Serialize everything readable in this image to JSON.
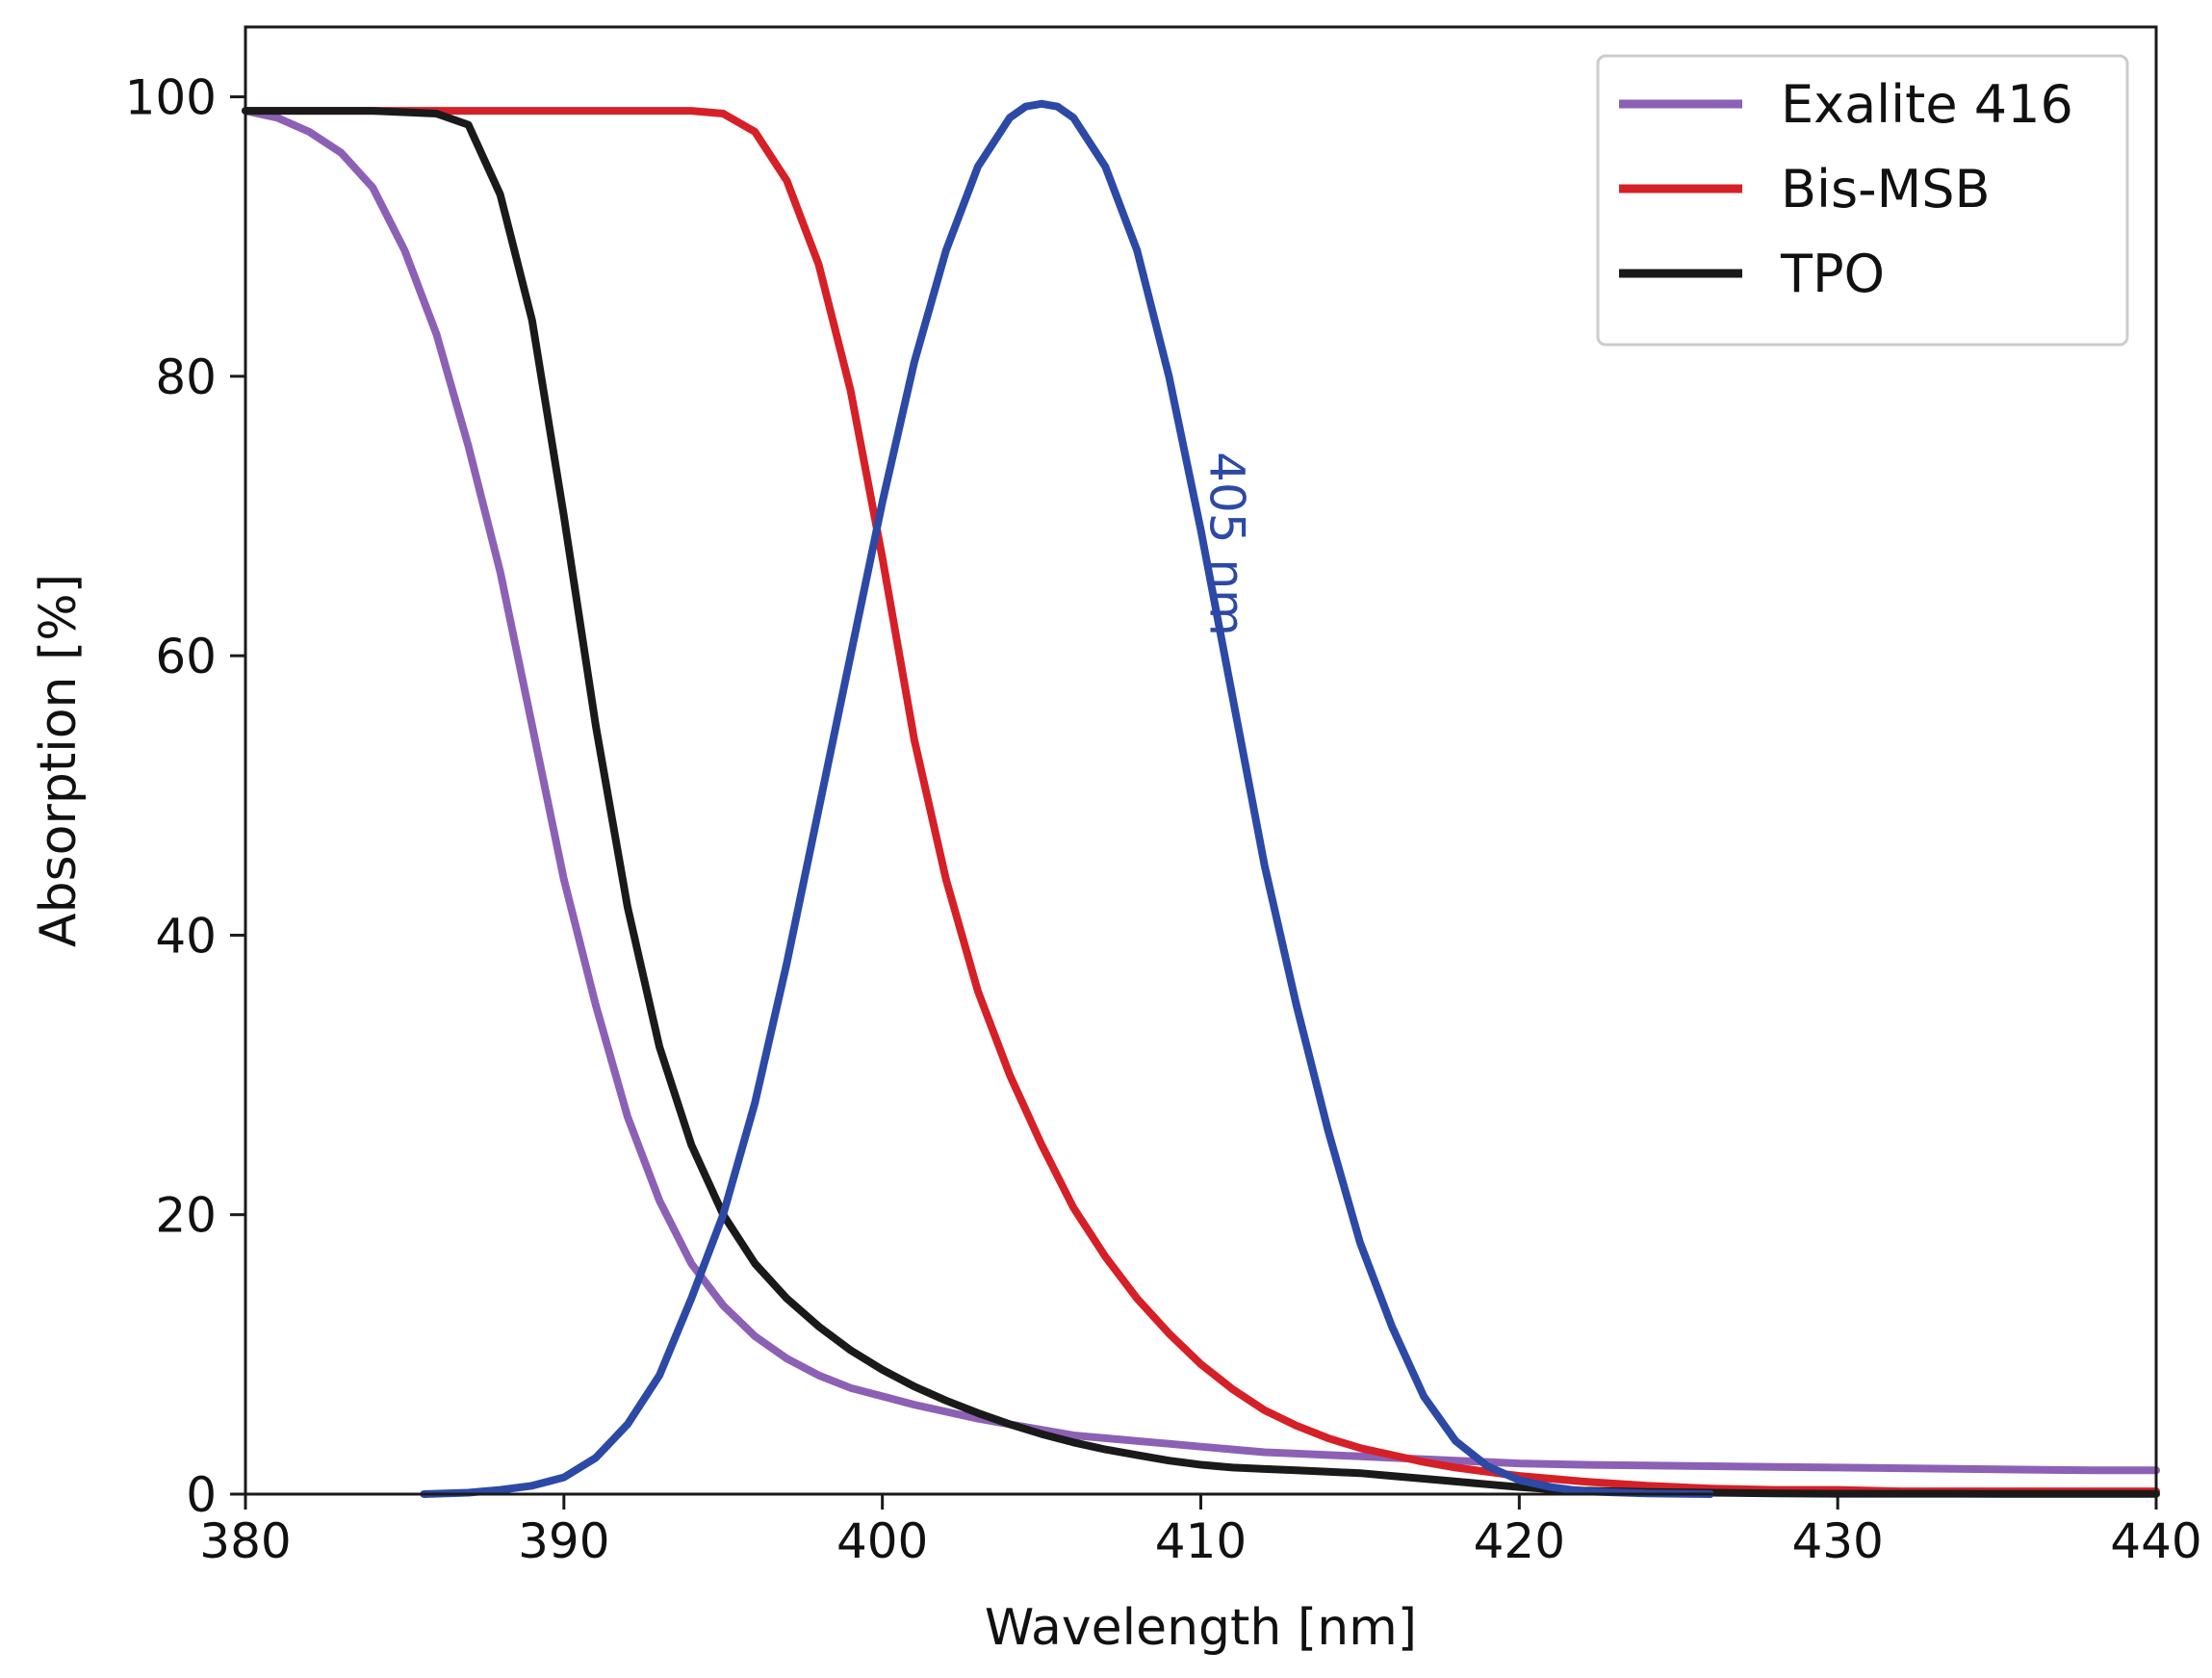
{
  "chart_data": {
    "type": "line",
    "title": "",
    "xlabel": "Wavelength [nm]",
    "ylabel": "Absorption [%]",
    "xlim": [
      380,
      440
    ],
    "ylim": [
      0,
      105
    ],
    "xticks": [
      380,
      390,
      400,
      410,
      420,
      430,
      440
    ],
    "yticks": [
      0,
      20,
      40,
      60,
      80,
      100
    ],
    "grid": false,
    "legend_position": "top-right",
    "series": [
      {
        "name": "Exalite 416",
        "color": "#8c61b5",
        "x": [
          380,
          381,
          382,
          383,
          384,
          385,
          386,
          387,
          388,
          389,
          390,
          391,
          392,
          393,
          394,
          395,
          396,
          397,
          398,
          399,
          400,
          401,
          402,
          403,
          404,
          405,
          406,
          407,
          408,
          409,
          410,
          411,
          412,
          413,
          414,
          415,
          416,
          417,
          418,
          419,
          420,
          422,
          424,
          426,
          428,
          430,
          432,
          434,
          436,
          438,
          440
        ],
        "y": [
          99,
          98.5,
          97.5,
          96,
          93.5,
          89,
          83,
          75,
          66,
          55,
          44,
          35,
          27,
          21,
          16.5,
          13.5,
          11.3,
          9.7,
          8.5,
          7.6,
          7,
          6.4,
          5.9,
          5.4,
          5,
          4.6,
          4.2,
          4,
          3.8,
          3.6,
          3.4,
          3.2,
          3,
          2.9,
          2.8,
          2.7,
          2.6,
          2.5,
          2.4,
          2.3,
          2.2,
          2.1,
          2.05,
          2,
          1.95,
          1.9,
          1.85,
          1.8,
          1.75,
          1.7,
          1.7
        ]
      },
      {
        "name": "Bis-MSB",
        "color": "#d62027",
        "x": [
          380,
          385,
          390,
          394,
          395,
          396,
          397,
          398,
          399,
          400,
          401,
          402,
          403,
          404,
          405,
          406,
          407,
          408,
          409,
          410,
          411,
          412,
          413,
          414,
          415,
          416,
          417,
          418,
          419,
          420,
          422,
          424,
          426,
          428,
          430,
          432,
          434,
          436,
          438,
          440
        ],
        "y": [
          99,
          99,
          99,
          99,
          98.8,
          97.5,
          94,
          88,
          79,
          67,
          54,
          44,
          36,
          30,
          25,
          20.5,
          17,
          14,
          11.5,
          9.3,
          7.5,
          6,
          4.9,
          4,
          3.3,
          2.8,
          2.3,
          1.9,
          1.6,
          1.3,
          0.9,
          0.6,
          0.4,
          0.3,
          0.3,
          0.2,
          0.2,
          0.2,
          0.2,
          0.2
        ]
      },
      {
        "name": "TPO",
        "color": "#1a1a1a",
        "x": [
          380,
          382,
          384,
          386,
          387,
          388,
          389,
          390,
          391,
          392,
          393,
          394,
          395,
          396,
          397,
          398,
          399,
          400,
          401,
          402,
          403,
          404,
          405,
          406,
          407,
          408,
          409,
          410,
          411,
          412,
          413,
          414,
          415,
          416,
          417,
          418,
          419,
          420,
          421,
          422,
          424,
          426,
          428,
          430,
          435,
          440
        ],
        "y": [
          99,
          99,
          99,
          98.8,
          98,
          93,
          84,
          70,
          55,
          42,
          32,
          25,
          20,
          16.5,
          14,
          12,
          10.3,
          8.9,
          7.7,
          6.7,
          5.8,
          5,
          4.3,
          3.7,
          3.2,
          2.8,
          2.4,
          2.1,
          1.9,
          1.8,
          1.7,
          1.6,
          1.5,
          1.3,
          1.1,
          0.9,
          0.7,
          0.5,
          0.35,
          0.25,
          0.15,
          0.1,
          0.05,
          0.03,
          0.02,
          0.02
        ]
      },
      {
        "name": "405 nm",
        "color": "#2c49a6",
        "x": [
          385.6,
          387,
          388,
          389,
          390,
          391,
          392,
          393,
          394,
          395,
          396,
          397,
          398,
          399,
          400,
          401,
          402,
          403,
          404,
          404.5,
          405,
          405.5,
          406,
          407,
          408,
          409,
          410,
          411,
          412,
          413,
          414,
          415,
          416,
          417,
          418,
          419,
          420,
          421,
          422,
          424,
          426
        ],
        "y": [
          0,
          0.1,
          0.3,
          0.6,
          1.2,
          2.6,
          5,
          8.5,
          14,
          20,
          28,
          38,
          49,
          60,
          71,
          81,
          89,
          95,
          98.5,
          99.3,
          99.5,
          99.3,
          98.5,
          95,
          89,
          80,
          69,
          57,
          45,
          35,
          26,
          18,
          12,
          7,
          3.8,
          2,
          1,
          0.5,
          0.2,
          0.05,
          0
        ]
      }
    ],
    "annotations": [
      {
        "text": "405 nm",
        "x": 410.3,
        "y": 68,
        "rotation": 90,
        "color": "#2c49a6"
      }
    ]
  }
}
